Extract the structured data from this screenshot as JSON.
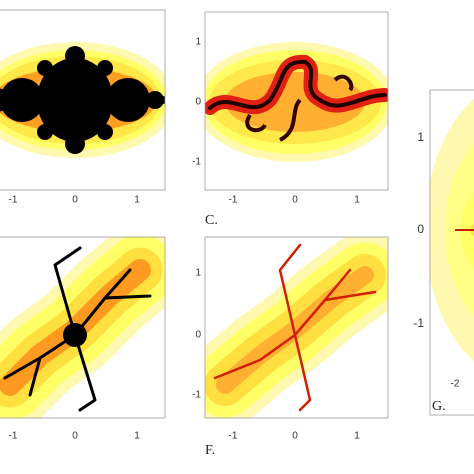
{
  "panels": [
    {
      "xticks": [
        "-1",
        "0",
        "1"
      ]
    },
    {
      "caption": "C.",
      "xticks": [
        "-1",
        "0",
        "1"
      ],
      "yticks": [
        "1",
        "0",
        "-1"
      ]
    },
    {
      "caption": "G.",
      "xticks": [
        "-2"
      ],
      "yticks": [
        "1",
        "0",
        "-1"
      ]
    },
    {
      "xticks": [
        "-1",
        "0",
        "1"
      ]
    },
    {
      "caption": "F.",
      "xticks": [
        "-1",
        "0",
        "1"
      ],
      "yticks": [
        "1",
        "0",
        "-1"
      ]
    }
  ]
}
